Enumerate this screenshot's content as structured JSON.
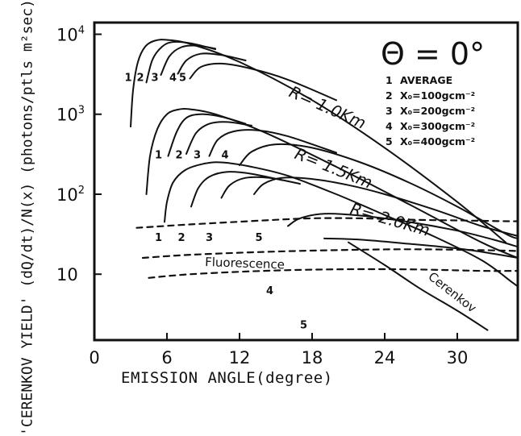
{
  "chart_data": {
    "type": "line",
    "title": "",
    "xlabel": "EMISSION ANGLE(degree)",
    "ylabel": "'CERENKOV YIELD' (dQ/dt)/N(x) (photons/ptls m²sec)",
    "xlim": [
      0,
      35
    ],
    "ylim": [
      1.5,
      14000
    ],
    "yscale": "log",
    "grid": false,
    "x_ticks": [
      "0",
      "6",
      "12",
      "18",
      "24",
      "30"
    ],
    "x_tick_values": [
      0,
      6,
      12,
      18,
      24,
      30
    ],
    "y_ticks": [
      {
        "value": 10000,
        "base": "10",
        "exp": "4"
      },
      {
        "value": 1000,
        "base": "10",
        "exp": "3"
      },
      {
        "value": 100,
        "base": "10",
        "exp": "2"
      },
      {
        "value": 10,
        "base": "10",
        "exp": ""
      }
    ],
    "legend": {
      "title": "Θ = 0°",
      "placement": "top-right",
      "items": [
        {
          "num": "1",
          "text": "AVERAGE"
        },
        {
          "num": "2",
          "text": "X₀=100gcm⁻²"
        },
        {
          "num": "3",
          "text": "X₀=200gcm⁻²"
        },
        {
          "num": "4",
          "text": "X₀=300gcm⁻²"
        },
        {
          "num": "5",
          "text": "X₀=400gcm⁻²"
        }
      ]
    },
    "annotations": {
      "R10": "R= 1.0Km",
      "R15": "R= 1.5Km",
      "R20": "R= 2.0Km",
      "fluorescence": "Fluorescence",
      "cerenkov": "Cerenkov"
    },
    "curve_labels": [
      {
        "text": "1",
        "x": 2.8,
        "y": 2600
      },
      {
        "text": "2",
        "x": 3.8,
        "y": 2600
      },
      {
        "text": "3",
        "x": 5.0,
        "y": 2600
      },
      {
        "text": "4",
        "x": 6.5,
        "y": 2600
      },
      {
        "text": "5",
        "x": 7.3,
        "y": 2600
      },
      {
        "text": "1",
        "x": 5.3,
        "y": 280
      },
      {
        "text": "2",
        "x": 7.0,
        "y": 280
      },
      {
        "text": "3",
        "x": 8.5,
        "y": 280
      },
      {
        "text": "4",
        "x": 10.8,
        "y": 280
      },
      {
        "text": "1",
        "x": 5.3,
        "y": 26
      },
      {
        "text": "2",
        "x": 7.2,
        "y": 26
      },
      {
        "text": "3",
        "x": 9.5,
        "y": 26
      },
      {
        "text": "5",
        "x": 13.6,
        "y": 26
      },
      {
        "text": "4",
        "x": 14.5,
        "y": 5.6
      },
      {
        "text": "5",
        "x": 17.3,
        "y": 2.1
      }
    ],
    "series": [
      {
        "group": "R=1.0Km",
        "curve": "1",
        "style": "solid",
        "points": [
          [
            3.0,
            700
          ],
          [
            3.2,
            2000
          ],
          [
            3.6,
            4500
          ],
          [
            4.2,
            7000
          ],
          [
            5.0,
            8300
          ],
          [
            6.0,
            8500
          ],
          [
            8.0,
            7500
          ],
          [
            12.0,
            4500
          ],
          [
            18.0,
            1500
          ],
          [
            24.0,
            380
          ],
          [
            30.0,
            80
          ],
          [
            34.0,
            25
          ]
        ]
      },
      {
        "group": "R=1.0Km",
        "curve": "2",
        "style": "solid",
        "points": [
          [
            4.3,
            2500
          ],
          [
            4.8,
            4800
          ],
          [
            5.6,
            7000
          ],
          [
            6.5,
            8000
          ],
          [
            8.0,
            7700
          ],
          [
            10.0,
            6500
          ]
        ]
      },
      {
        "group": "R=1.0Km",
        "curve": "3",
        "style": "solid",
        "points": [
          [
            5.5,
            3100
          ],
          [
            6.2,
            5300
          ],
          [
            7.2,
            6900
          ],
          [
            8.5,
            7200
          ],
          [
            10.0,
            6600
          ]
        ]
      },
      {
        "group": "R=1.0Km",
        "curve": "4",
        "style": "solid",
        "points": [
          [
            6.9,
            3200
          ],
          [
            7.6,
            4700
          ],
          [
            8.8,
            5700
          ],
          [
            10.5,
            5500
          ],
          [
            12.5,
            4700
          ]
        ]
      },
      {
        "group": "R=1.0Km",
        "curve": "5",
        "style": "solid",
        "points": [
          [
            7.9,
            2800
          ],
          [
            8.8,
            3900
          ],
          [
            10.5,
            4300
          ],
          [
            13.0,
            3700
          ],
          [
            16.0,
            2700
          ],
          [
            20.0,
            1500
          ]
        ]
      },
      {
        "group": "R=1.5Km",
        "curve": "1",
        "style": "solid",
        "points": [
          [
            4.3,
            100
          ],
          [
            4.6,
            300
          ],
          [
            5.2,
            650
          ],
          [
            6.0,
            1000
          ],
          [
            7.0,
            1150
          ],
          [
            8.0,
            1150
          ],
          [
            10.0,
            1000
          ],
          [
            14.0,
            600
          ],
          [
            20.0,
            220
          ],
          [
            26.0,
            75
          ],
          [
            32.0,
            25
          ],
          [
            35.0,
            16
          ]
        ]
      },
      {
        "group": "R=1.5Km",
        "curve": "2",
        "style": "solid",
        "points": [
          [
            6.1,
            300
          ],
          [
            6.8,
            600
          ],
          [
            7.6,
            900
          ],
          [
            8.8,
            1000
          ],
          [
            10.5,
            930
          ],
          [
            12.5,
            760
          ]
        ]
      },
      {
        "group": "R=1.5Km",
        "curve": "3",
        "style": "solid",
        "points": [
          [
            7.6,
            320
          ],
          [
            8.4,
            580
          ],
          [
            9.5,
            760
          ],
          [
            11.0,
            800
          ],
          [
            13.0,
            720
          ]
        ]
      },
      {
        "group": "R=1.5Km",
        "curve": "4",
        "style": "solid",
        "points": [
          [
            9.5,
            300
          ],
          [
            10.2,
            480
          ],
          [
            11.5,
            610
          ],
          [
            13.5,
            630
          ],
          [
            16.0,
            530
          ],
          [
            20.0,
            330
          ]
        ]
      },
      {
        "group": "R=1.5Km",
        "curve": "5",
        "style": "solid",
        "points": [
          [
            12.0,
            230
          ],
          [
            13.0,
            340
          ],
          [
            15.0,
            420
          ],
          [
            18.0,
            380
          ],
          [
            22.0,
            250
          ],
          [
            26.0,
            140
          ],
          [
            30.0,
            70
          ],
          [
            34.0,
            32
          ],
          [
            35.0,
            28
          ]
        ]
      },
      {
        "group": "R=2.0Km",
        "curve": "1",
        "style": "solid",
        "points": [
          [
            5.8,
            45
          ],
          [
            6.0,
            80
          ],
          [
            6.5,
            140
          ],
          [
            7.5,
            200
          ],
          [
            9.0,
            240
          ],
          [
            10.5,
            250
          ],
          [
            13.0,
            220
          ],
          [
            16.0,
            170
          ],
          [
            20.0,
            100
          ],
          [
            24.0,
            55
          ],
          [
            28.0,
            30
          ],
          [
            32.0,
            15
          ],
          [
            34.5,
            8
          ],
          [
            35.0,
            7
          ]
        ]
      },
      {
        "group": "R=2.0Km",
        "curve": "2",
        "style": "solid",
        "points": [
          [
            8.0,
            70
          ],
          [
            8.6,
            120
          ],
          [
            9.5,
            165
          ],
          [
            11.0,
            190
          ],
          [
            13.0,
            180
          ],
          [
            15.5,
            150
          ]
        ]
      },
      {
        "group": "R=2.0Km",
        "curve": "3",
        "style": "solid",
        "points": [
          [
            10.5,
            90
          ],
          [
            11.2,
            130
          ],
          [
            12.5,
            160
          ],
          [
            14.5,
            160
          ],
          [
            17.0,
            135
          ]
        ]
      },
      {
        "group": "R=2.0Km",
        "curve": "4",
        "style": "solid",
        "points": [
          [
            13.2,
            100
          ],
          [
            14.0,
            135
          ],
          [
            15.5,
            160
          ],
          [
            18.0,
            155
          ],
          [
            21.0,
            130
          ],
          [
            24.0,
            100
          ],
          [
            28.0,
            65
          ],
          [
            32.0,
            40
          ],
          [
            35.0,
            30
          ]
        ]
      },
      {
        "group": "R=2.0Km",
        "curve": "5",
        "style": "solid",
        "points": [
          [
            16.0,
            40
          ],
          [
            17.0,
            50
          ],
          [
            19.0,
            57
          ],
          [
            22.0,
            54
          ],
          [
            26.0,
            45
          ],
          [
            30.0,
            35
          ],
          [
            33.0,
            27
          ],
          [
            35.0,
            22
          ]
        ]
      },
      {
        "group": "Fluorescence",
        "curve": "R=1.0Km",
        "style": "dashed",
        "points": [
          [
            3.5,
            38
          ],
          [
            8.0,
            42
          ],
          [
            14.0,
            47
          ],
          [
            18.0,
            50
          ],
          [
            22.0,
            50
          ],
          [
            26.0,
            48
          ],
          [
            30.0,
            47
          ],
          [
            34.0,
            46
          ],
          [
            35.0,
            46
          ]
        ]
      },
      {
        "group": "Fluorescence",
        "curve": "R=1.5Km",
        "style": "dashed",
        "points": [
          [
            4.0,
            16
          ],
          [
            8.0,
            17.5
          ],
          [
            14.0,
            19
          ],
          [
            20.0,
            20
          ],
          [
            26.0,
            20.5
          ],
          [
            32.0,
            20
          ],
          [
            35.0,
            19.5
          ]
        ]
      },
      {
        "group": "Fluorescence",
        "curve": "R=2.0Km",
        "style": "dashed",
        "points": [
          [
            4.5,
            9
          ],
          [
            8.0,
            10
          ],
          [
            14.0,
            11
          ],
          [
            20.0,
            11.5
          ],
          [
            26.0,
            11.5
          ],
          [
            32.0,
            11
          ],
          [
            35.0,
            11
          ]
        ]
      },
      {
        "group": "Cerenkov tail",
        "curve": "R=2.0Km",
        "style": "solid",
        "points": [
          [
            19.0,
            28
          ],
          [
            22.0,
            27
          ],
          [
            26.0,
            24
          ],
          [
            30.0,
            21
          ],
          [
            33.0,
            18
          ],
          [
            35.0,
            16
          ]
        ]
      },
      {
        "group": "Cerenkov tail",
        "curve": "steep",
        "style": "solid",
        "points": [
          [
            21.0,
            25
          ],
          [
            24.0,
            13
          ],
          [
            27.0,
            6.5
          ],
          [
            30.0,
            3.5
          ],
          [
            32.5,
            2.0
          ]
        ]
      }
    ]
  }
}
